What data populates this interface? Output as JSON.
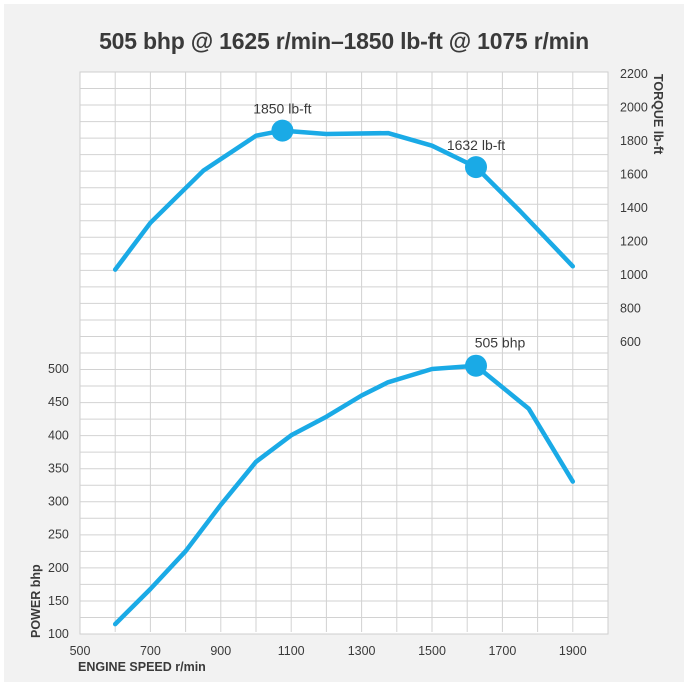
{
  "chart_data": {
    "type": "line",
    "title": "505 bhp @ 1625 r/min–1850 lb-ft @ 1075 r/min",
    "xlabel": "ENGINE SPEED r/min",
    "xlim": [
      500,
      2000
    ],
    "x_ticks": [
      500,
      700,
      900,
      1100,
      1300,
      1500,
      1700,
      1900
    ],
    "grid": true,
    "colors": {
      "line": "#1aaae6",
      "grid": "#d2d2d2",
      "frame": "#cfcfcf",
      "text": "#3a3a3a",
      "background": "#f2f2f2"
    },
    "torque": {
      "axis_label": "TORQUE lb-ft",
      "axis_side": "right",
      "ylim": [
        400,
        2200
      ],
      "y_ticks": [
        600,
        800,
        1000,
        1200,
        1400,
        1600,
        1800,
        2000,
        2200
      ],
      "series": {
        "x": [
          600,
          700,
          850,
          1000,
          1075,
          1200,
          1375,
          1500,
          1625,
          1750,
          1900
        ],
        "y": [
          1020,
          1300,
          1610,
          1820,
          1850,
          1830,
          1835,
          1760,
          1632,
          1370,
          1040
        ]
      },
      "peak_markers": [
        {
          "x": 1075,
          "y": 1850,
          "label": "1850 lb-ft"
        },
        {
          "x": 1625,
          "y": 1632,
          "label": "1632 lb-ft"
        }
      ]
    },
    "power": {
      "axis_label": "POWER bhp",
      "axis_side": "left",
      "ylim": [
        100,
        550
      ],
      "y_ticks": [
        100,
        150,
        200,
        250,
        300,
        350,
        400,
        450,
        500
      ],
      "series": {
        "x": [
          600,
          700,
          800,
          900,
          1000,
          1100,
          1200,
          1300,
          1375,
          1500,
          1625,
          1775,
          1900
        ],
        "y": [
          115,
          168,
          225,
          295,
          360,
          400,
          428,
          460,
          480,
          500,
          505,
          440,
          330
        ]
      },
      "peak_markers": [
        {
          "x": 1625,
          "y": 505,
          "label": "505 bhp"
        }
      ]
    }
  }
}
